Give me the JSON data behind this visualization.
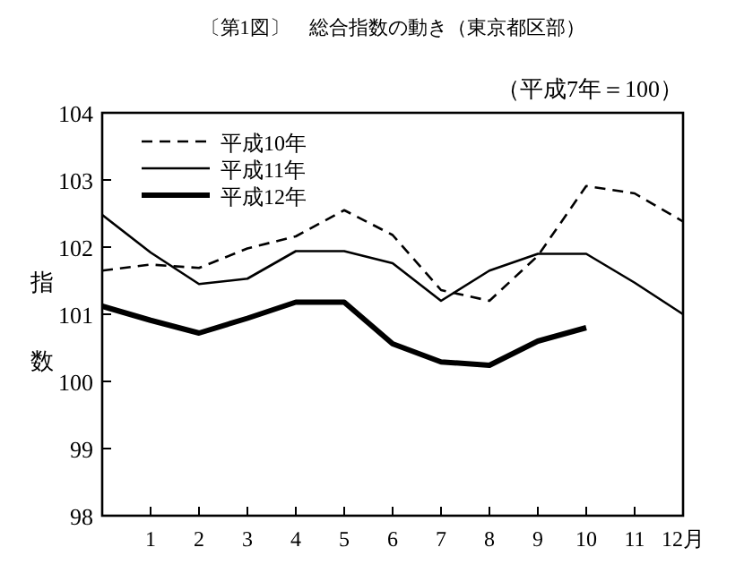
{
  "chart_data": {
    "type": "line",
    "title": "〔第1図〕　総合指数の動き（東京都区部）",
    "ylabel": "指数",
    "annotations": [
      "（平成7年＝100）"
    ],
    "x": [
      0,
      1,
      2,
      3,
      4,
      5,
      6,
      7,
      8,
      9,
      10,
      11,
      12
    ],
    "xlim": [
      0,
      12
    ],
    "xticks": [
      1,
      2,
      3,
      4,
      5,
      6,
      7,
      8,
      9,
      10,
      11,
      {
        "value": 12,
        "label": "12月"
      }
    ],
    "ylim": [
      98,
      104
    ],
    "yticks": [
      98,
      99,
      100,
      101,
      102,
      103,
      104
    ],
    "legend": "top left",
    "series": [
      {
        "name": "平成10年",
        "color": "#000000",
        "line_style": "dashed",
        "values": [
          101.65,
          101.74,
          101.69,
          101.98,
          102.16,
          102.55,
          102.18,
          101.36,
          101.2,
          101.87,
          102.91,
          102.8,
          102.38
        ]
      },
      {
        "name": "平成11年",
        "color": "#000000",
        "line_style": "solid",
        "values": [
          102.48,
          101.92,
          101.45,
          101.53,
          101.94,
          101.94,
          101.76,
          101.2,
          101.65,
          101.9,
          101.9,
          101.47,
          101.0
        ]
      },
      {
        "name": "平成12年",
        "color": "#000000",
        "line_style": "solid",
        "values": [
          101.12,
          100.91,
          100.72,
          100.94,
          101.18,
          101.18,
          100.56,
          100.29,
          100.24,
          100.6,
          100.8,
          null,
          null
        ]
      }
    ]
  }
}
